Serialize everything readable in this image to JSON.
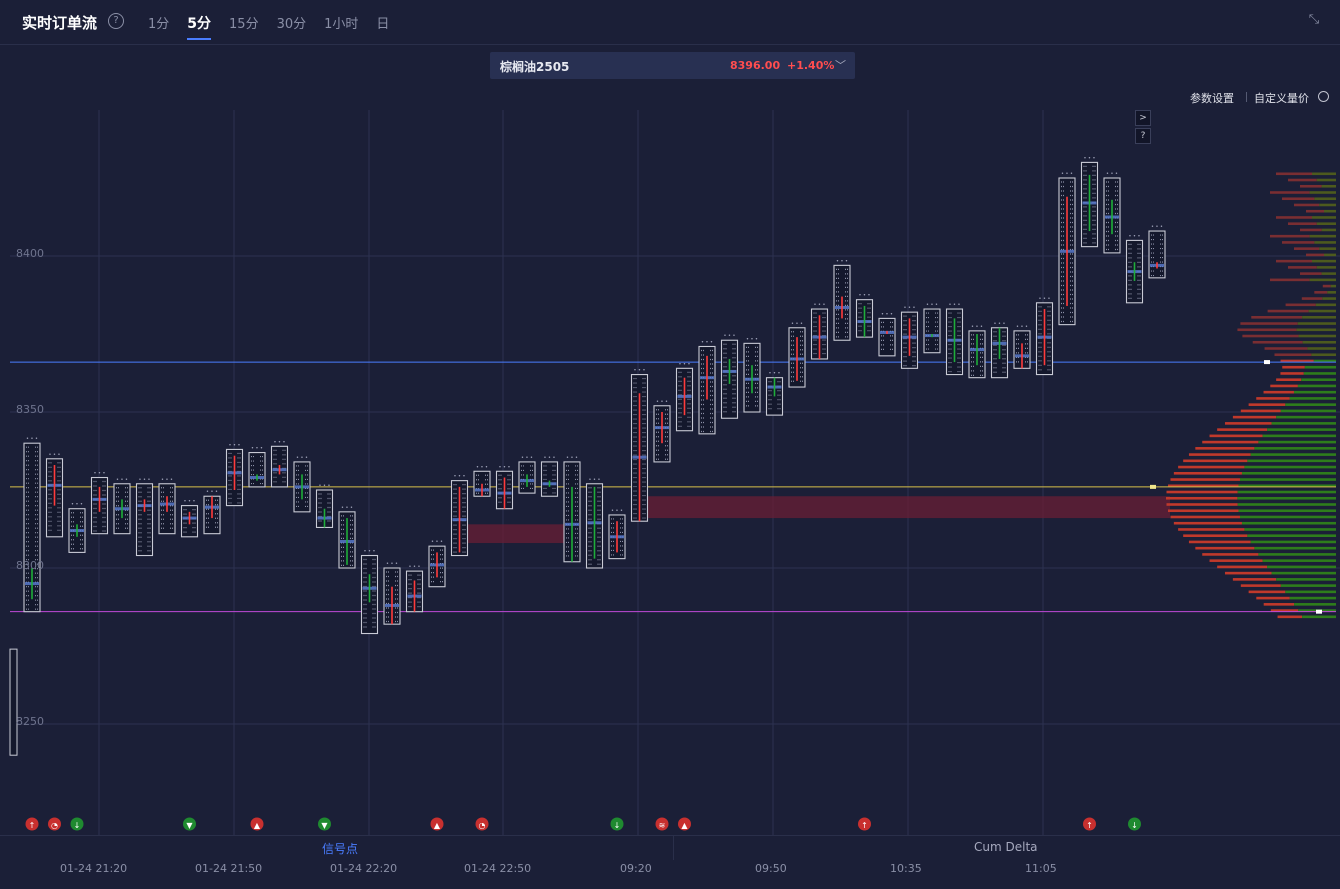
{
  "header": {
    "title": "实时订单流",
    "help_icon": "?",
    "tabs": [
      {
        "label": "1分",
        "active": false
      },
      {
        "label": "5分",
        "active": true
      },
      {
        "label": "15分",
        "active": false
      },
      {
        "label": "30分",
        "active": false
      },
      {
        "label": "1小时",
        "active": false
      },
      {
        "label": "日",
        "active": false
      }
    ],
    "collapse_icon": "⤡"
  },
  "symbol": {
    "name": "棕榈油2505",
    "price": "8396.00",
    "change": "+1.40%",
    "caret": "﹀"
  },
  "toolbar": {
    "settings": "参数设置",
    "custom_price": "自定义量价"
  },
  "mini_buttons": [
    ">",
    "?"
  ],
  "axis": {
    "y_labels": [
      "8400",
      "8350",
      "8300",
      "8250"
    ],
    "x_labels": [
      "01-24 21:20",
      "01-24 21:50",
      "01-24 22:20",
      "01-24 22:50",
      "09:20",
      "09:50",
      "10:35",
      "11:05"
    ]
  },
  "bottom_tabs": {
    "signals": "信号点",
    "cum_delta": "Cum Delta"
  },
  "colors": {
    "background": "#1b1f37",
    "up": "#ff4d4f",
    "down": "#22a33a",
    "accent": "#4a7dff"
  },
  "chart_data": {
    "type": "footprint",
    "symbol": "棕榈油2505",
    "ylim": [
      8220,
      8445
    ],
    "candles": [
      {
        "o": 8300,
        "h": 8340,
        "l": 8286,
        "c": 8290
      },
      {
        "o": 8320,
        "h": 8335,
        "l": 8310,
        "c": 8333
      },
      {
        "o": 8314,
        "h": 8319,
        "l": 8305,
        "c": 8310
      },
      {
        "o": 8318,
        "h": 8329,
        "l": 8311,
        "c": 8326
      },
      {
        "o": 8322,
        "h": 8327,
        "l": 8311,
        "c": 8316
      },
      {
        "o": 8318,
        "h": 8327,
        "l": 8304,
        "c": 8322
      },
      {
        "o": 8318,
        "h": 8327,
        "l": 8311,
        "c": 8323
      },
      {
        "o": 8314,
        "h": 8320,
        "l": 8310,
        "c": 8318
      },
      {
        "o": 8316,
        "h": 8323,
        "l": 8311,
        "c": 8323
      },
      {
        "o": 8325,
        "h": 8338,
        "l": 8320,
        "c": 8336
      },
      {
        "o": 8330,
        "h": 8337,
        "l": 8326,
        "c": 8328
      },
      {
        "o": 8330,
        "h": 8339,
        "l": 8326,
        "c": 8333
      },
      {
        "o": 8330,
        "h": 8334,
        "l": 8318,
        "c": 8322
      },
      {
        "o": 8319,
        "h": 8325,
        "l": 8313,
        "c": 8313
      },
      {
        "o": 8316,
        "h": 8318,
        "l": 8300,
        "c": 8301
      },
      {
        "o": 8298,
        "h": 8304,
        "l": 8279,
        "c": 8289
      },
      {
        "o": 8282,
        "h": 8300,
        "l": 8283,
        "c": 8294
      },
      {
        "o": 8286,
        "h": 8299,
        "l": 8286,
        "c": 8296
      },
      {
        "o": 8297,
        "h": 8307,
        "l": 8294,
        "c": 8305
      },
      {
        "o": 8305,
        "h": 8328,
        "l": 8304,
        "c": 8326
      },
      {
        "o": 8323,
        "h": 8331,
        "l": 8323,
        "c": 8327
      },
      {
        "o": 8319,
        "h": 8331,
        "l": 8319,
        "c": 8329
      },
      {
        "o": 8330,
        "h": 8334,
        "l": 8324,
        "c": 8326
      },
      {
        "o": 8328,
        "h": 8334,
        "l": 8323,
        "c": 8326
      },
      {
        "o": 8326,
        "h": 8334,
        "l": 8302,
        "c": 8302
      },
      {
        "o": 8326,
        "h": 8327,
        "l": 8300,
        "c": 8303
      },
      {
        "o": 8305,
        "h": 8317,
        "l": 8303,
        "c": 8315
      },
      {
        "o": 8315,
        "h": 8362,
        "l": 8315,
        "c": 8356
      },
      {
        "o": 8340,
        "h": 8352,
        "l": 8334,
        "c": 8350
      },
      {
        "o": 8349,
        "h": 8364,
        "l": 8344,
        "c": 8361
      },
      {
        "o": 8354,
        "h": 8371,
        "l": 8343,
        "c": 8368
      },
      {
        "o": 8367,
        "h": 8373,
        "l": 8348,
        "c": 8359
      },
      {
        "o": 8365,
        "h": 8372,
        "l": 8350,
        "c": 8356
      },
      {
        "o": 8361,
        "h": 8361,
        "l": 8349,
        "c": 8355
      },
      {
        "o": 8360,
        "h": 8377,
        "l": 8358,
        "c": 8374
      },
      {
        "o": 8367,
        "h": 8383,
        "l": 8367,
        "c": 8381
      },
      {
        "o": 8380,
        "h": 8397,
        "l": 8373,
        "c": 8387
      },
      {
        "o": 8384,
        "h": 8386,
        "l": 8374,
        "c": 8374
      },
      {
        "o": 8375,
        "h": 8380,
        "l": 8368,
        "c": 8376
      },
      {
        "o": 8368,
        "h": 8382,
        "l": 8364,
        "c": 8380
      },
      {
        "o": 8375,
        "h": 8383,
        "l": 8369,
        "c": 8374
      },
      {
        "o": 8380,
        "h": 8383,
        "l": 8362,
        "c": 8366
      },
      {
        "o": 8375,
        "h": 8376,
        "l": 8361,
        "c": 8365
      },
      {
        "o": 8377,
        "h": 8376,
        "l": 8361,
        "c": 8367
      },
      {
        "o": 8364,
        "h": 8376,
        "l": 8364,
        "c": 8372
      },
      {
        "o": 8365,
        "h": 8385,
        "l": 8362,
        "c": 8383
      },
      {
        "o": 8384,
        "h": 8425,
        "l": 8378,
        "c": 8419
      },
      {
        "o": 8426,
        "h": 8430,
        "l": 8403,
        "c": 8408
      },
      {
        "o": 8418,
        "h": 8425,
        "l": 8401,
        "c": 8407
      },
      {
        "o": 8398,
        "h": 8405,
        "l": 8385,
        "c": 8392
      },
      {
        "o": 8396,
        "h": 8408,
        "l": 8393,
        "c": 8398
      }
    ],
    "levels": [
      {
        "price": 8366,
        "color": "#4a7dff"
      },
      {
        "price": 8326,
        "color": "#d8c04a"
      },
      {
        "price": 8286,
        "color": "#c04ad8"
      }
    ],
    "signals": [
      {
        "x": 0,
        "type": "up-arrow",
        "color": "red"
      },
      {
        "x": 1,
        "type": "flame",
        "color": "red"
      },
      {
        "x": 2,
        "type": "down-arrow",
        "color": "green"
      },
      {
        "x": 7,
        "type": "down-tri",
        "color": "green"
      },
      {
        "x": 10,
        "type": "up-tri",
        "color": "red"
      },
      {
        "x": 13,
        "type": "down-tri",
        "color": "green"
      },
      {
        "x": 18,
        "type": "up-tri",
        "color": "red"
      },
      {
        "x": 20,
        "type": "flame",
        "color": "red"
      },
      {
        "x": 26,
        "type": "down-arrow",
        "color": "green"
      },
      {
        "x": 28,
        "type": "double",
        "color": "red"
      },
      {
        "x": 29,
        "type": "up-tri",
        "color": "red"
      },
      {
        "x": 37,
        "type": "up-arrow",
        "color": "red"
      },
      {
        "x": 47,
        "type": "up-arrow",
        "color": "red"
      },
      {
        "x": 49,
        "type": "down-arrow",
        "color": "green"
      }
    ]
  }
}
